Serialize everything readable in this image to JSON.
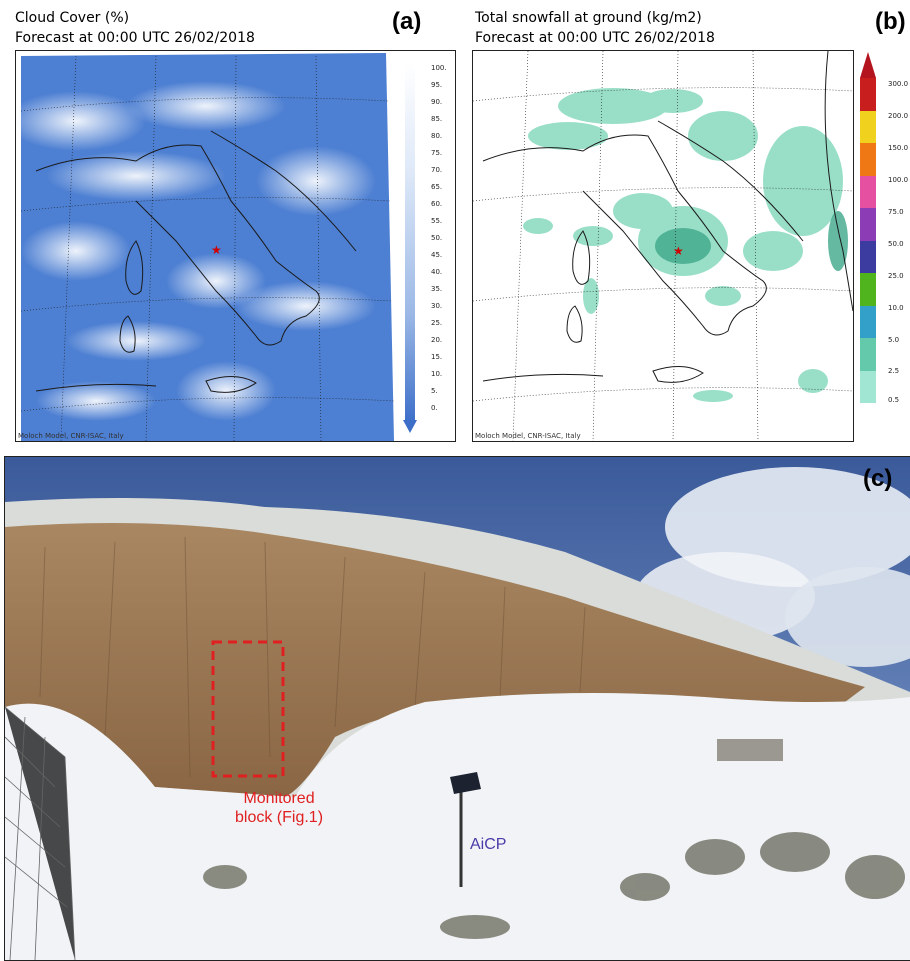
{
  "panel_a": {
    "tag": "(a)",
    "title_line1": "Cloud Cover (%)",
    "title_line2": "Forecast at 00:00 UTC 26/02/2018",
    "credit": "Moloch Model, CNR-ISAC, Italy",
    "colorbar_labels": [
      "100.",
      "95.",
      "90.",
      "85.",
      "80.",
      "75.",
      "70.",
      "65.",
      "60.",
      "55.",
      "50.",
      "45.",
      "40.",
      "35.",
      "30.",
      "25.",
      "20.",
      "15.",
      "10.",
      "5.",
      "0."
    ],
    "colors": {
      "deep": "#3d6fc9",
      "mid": "#6f98dc",
      "light": "#dfe9f8"
    }
  },
  "panel_b": {
    "tag": "(b)",
    "title_line1": "Total snowfall at ground (kg/m2)",
    "title_line2": "Forecast at 00:00 UTC 26/02/2018",
    "credit": "Moloch Model, CNR-ISAC, Italy",
    "colorbar_labels": [
      "300.0",
      "200.0",
      "150.0",
      "100.0",
      "75.0",
      "50.0",
      "25.0",
      "10.0",
      "5.0",
      "2.5",
      "0.5"
    ],
    "colorbar_colors": [
      "#c81e1e",
      "#f0d21e",
      "#f07814",
      "#e650a0",
      "#8c3cb4",
      "#3c3ca0",
      "#50b41e",
      "#32a0c8",
      "#64c8aa",
      "#a0e6d2"
    ]
  },
  "panel_c": {
    "tag": "(c)",
    "label_monitored": "Monitored\nblock (Fig.1)",
    "label_aicp": "AiCP"
  }
}
